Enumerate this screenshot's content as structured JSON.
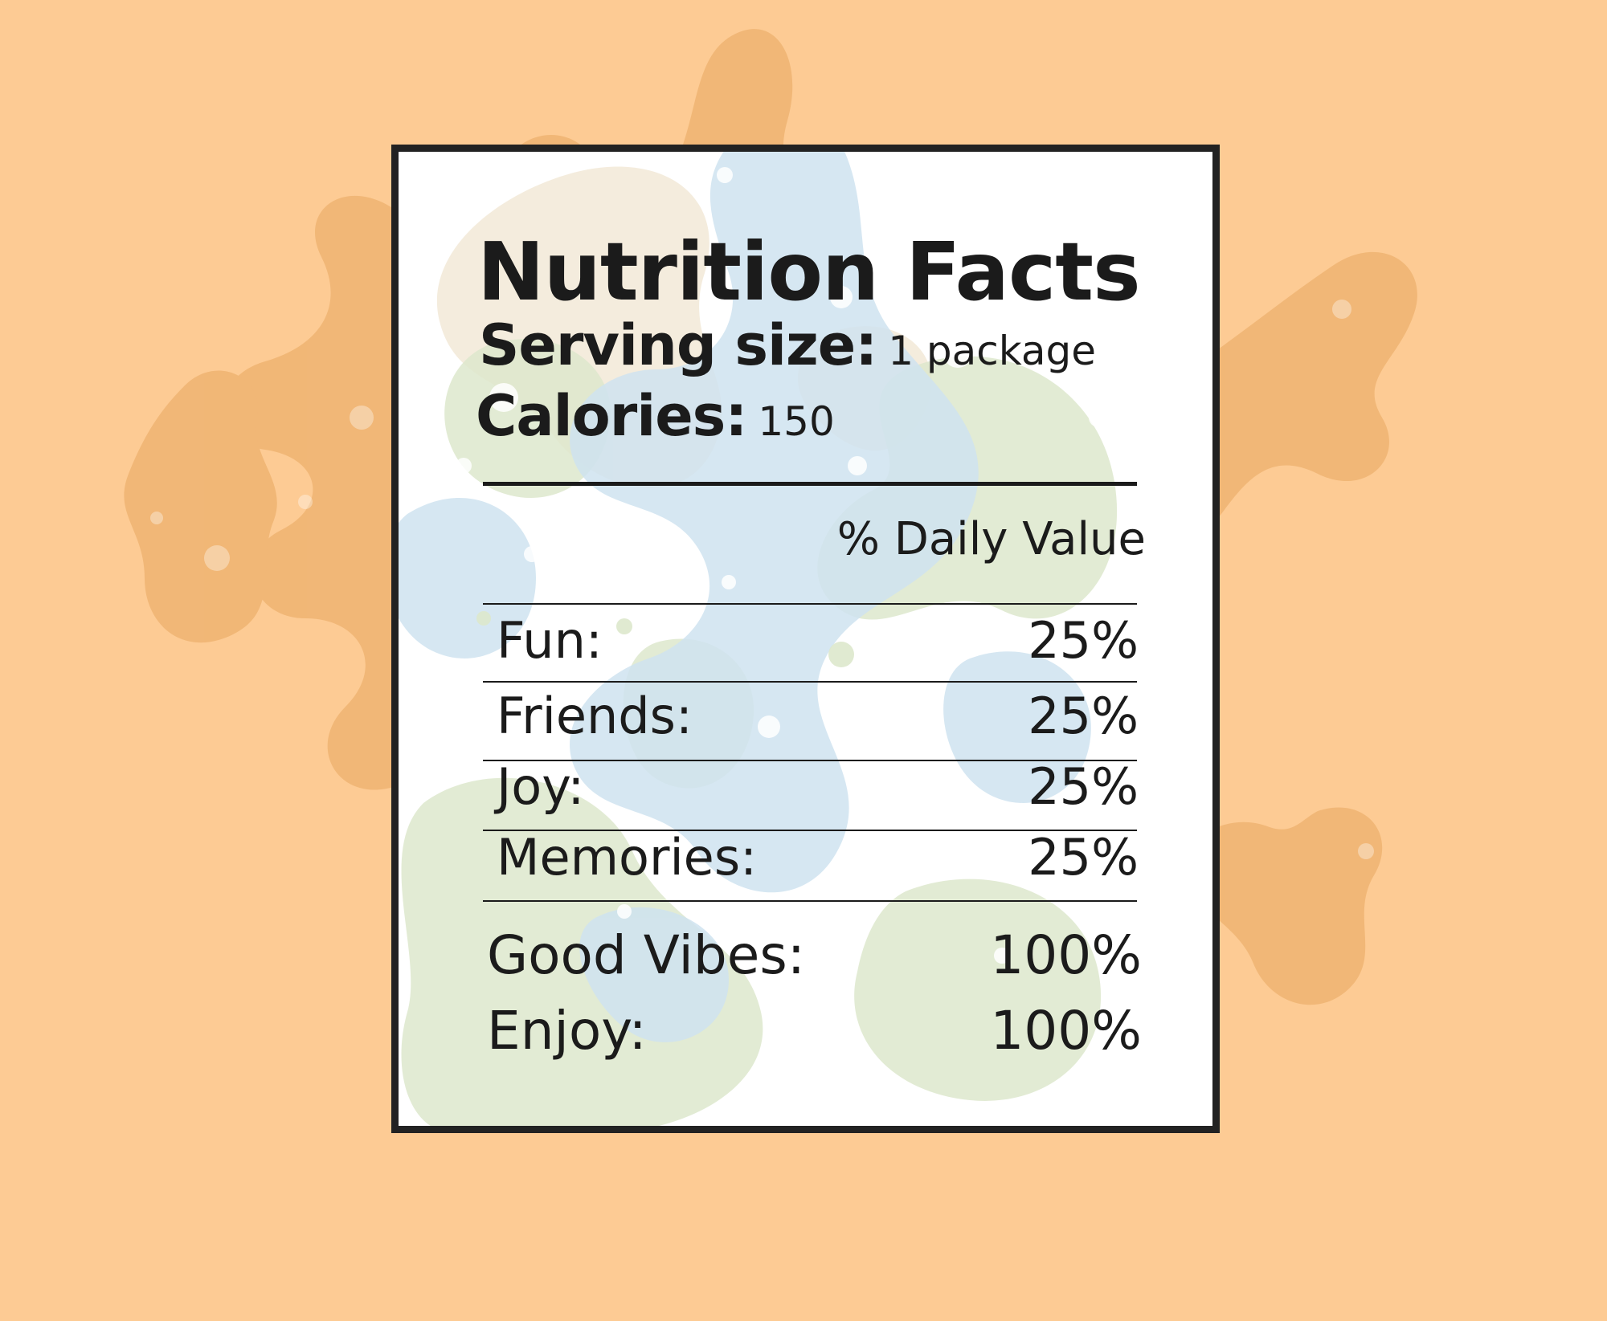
{
  "label": {
    "title": "Nutrition Facts",
    "serving_label": "Serving size:",
    "serving_value": "1 package",
    "calories_label": "Calories:",
    "calories_value": "150",
    "dv_header": "% Daily Value",
    "rows": [
      {
        "name": "Fun:",
        "value": "25%"
      },
      {
        "name": "Friends:",
        "value": "25%"
      },
      {
        "name": "Joy:",
        "value": "25%"
      },
      {
        "name": "Memories:",
        "value": "25%"
      }
    ],
    "extras": [
      {
        "name": "Good Vibes:",
        "value": "100%"
      },
      {
        "name": "Enjoy:",
        "value": "100%"
      }
    ]
  },
  "colors": {
    "background": "#fdcb94",
    "splash": "#e8a75f",
    "label_bg": "#ffffff",
    "blob_blue": "#cfe3f0",
    "blob_green": "#dde8cc",
    "blob_cream": "#efe4cf",
    "border": "#222222",
    "text": "#1b1b1b"
  }
}
